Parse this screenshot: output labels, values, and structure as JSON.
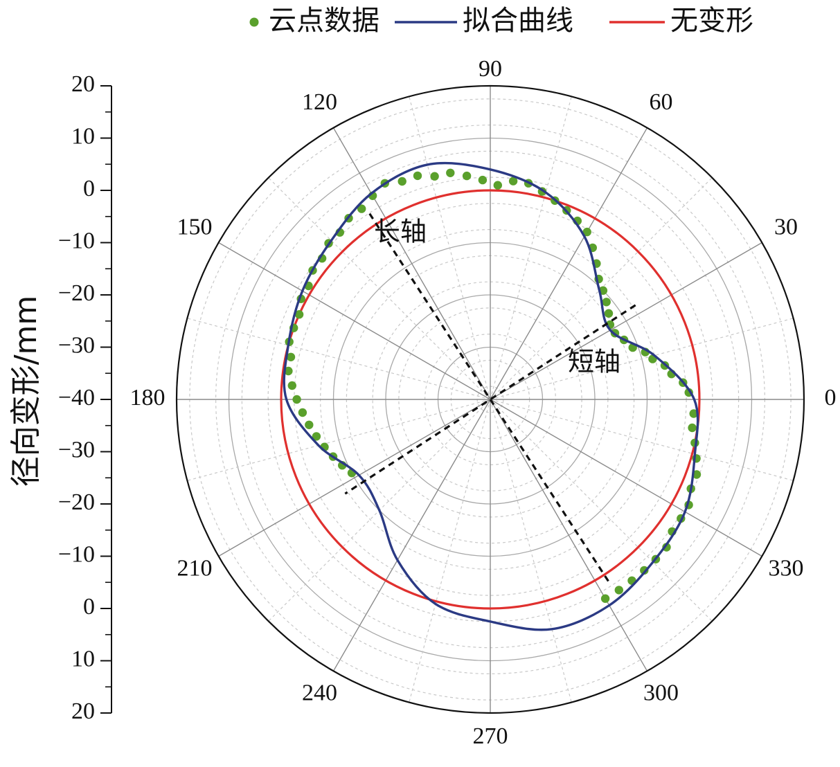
{
  "chart_data": {
    "type": "polar-scatter-line",
    "ylabel": "径向变形/mm",
    "legend": {
      "placement": "top-center",
      "entries": [
        {
          "key": "points",
          "label": "云点数据",
          "color": "#5aa02c",
          "marker": "dot"
        },
        {
          "key": "fit",
          "label": "拟合曲线",
          "color": "#2b3a84",
          "marker": "line"
        },
        {
          "key": "ref",
          "label": "无变形",
          "color": "#e0302e",
          "marker": "line"
        }
      ]
    },
    "radial_axis": {
      "range": [
        -40,
        20
      ],
      "ticks_top": [
        "20",
        "10",
        "0",
        "−10",
        "−20",
        "−30"
      ],
      "tick_center": "−40",
      "ticks_bottom": [
        "−30",
        "−20",
        "−10",
        "0",
        "10",
        "20"
      ]
    },
    "angular_ticks": [
      "0",
      "30",
      "60",
      "90",
      "120",
      "150",
      "180",
      "210",
      "240",
      "270",
      "300",
      "330"
    ],
    "annotations": [
      {
        "label": "长轴",
        "axis_angle_deg": 123
      },
      {
        "label": "短轴",
        "axis_angle_deg": 33
      }
    ],
    "reference_radius": 0,
    "fit_curve": [
      {
        "angle": 0,
        "r": -1.0
      },
      {
        "angle": 15,
        "r": -7.5
      },
      {
        "angle": 30,
        "r": -13.5
      },
      {
        "angle": 45,
        "r": -10.5
      },
      {
        "angle": 60,
        "r": -4.0
      },
      {
        "angle": 75,
        "r": 1.0
      },
      {
        "angle": 90,
        "r": 4.0
      },
      {
        "angle": 105,
        "r": 6.5
      },
      {
        "angle": 120,
        "r": 5.5
      },
      {
        "angle": 135,
        "r": 3.0
      },
      {
        "angle": 150,
        "r": 1.5
      },
      {
        "angle": 165,
        "r": 0.0
      },
      {
        "angle": 180,
        "r": -1.0
      },
      {
        "angle": 195,
        "r": -6.0
      },
      {
        "angle": 210,
        "r": -11.0
      },
      {
        "angle": 225,
        "r": -10.0
      },
      {
        "angle": 240,
        "r": -4.5
      },
      {
        "angle": 255,
        "r": 0.5
      },
      {
        "angle": 270,
        "r": 2.5
      },
      {
        "angle": 285,
        "r": 5.5
      },
      {
        "angle": 300,
        "r": 5.5
      },
      {
        "angle": 315,
        "r": 4.0
      },
      {
        "angle": 330,
        "r": 3.0
      },
      {
        "angle": 345,
        "r": 0.5
      },
      {
        "angle": 360,
        "r": -1.0
      }
    ],
    "cloud_points": [
      {
        "angle": 2,
        "r": -2
      },
      {
        "angle": 5,
        "r": -3
      },
      {
        "angle": 8,
        "r": -5
      },
      {
        "angle": 11,
        "r": -6
      },
      {
        "angle": 14,
        "r": -8
      },
      {
        "angle": 17,
        "r": -9
      },
      {
        "angle": 20,
        "r": -11
      },
      {
        "angle": 24,
        "r": -12
      },
      {
        "angle": 28,
        "r": -13
      },
      {
        "angle": 32,
        "r": -13
      },
      {
        "angle": 36,
        "r": -12
      },
      {
        "angle": 40,
        "r": -11
      },
      {
        "angle": 44,
        "r": -10
      },
      {
        "angle": 48,
        "r": -9
      },
      {
        "angle": 52,
        "r": -7
      },
      {
        "angle": 56,
        "r": -5
      },
      {
        "angle": 60,
        "r": -3
      },
      {
        "angle": 64,
        "r": -2
      },
      {
        "angle": 68,
        "r": -1
      },
      {
        "angle": 72,
        "r": 0
      },
      {
        "angle": 76,
        "r": 1
      },
      {
        "angle": 80,
        "r": 2
      },
      {
        "angle": 84,
        "r": 2
      },
      {
        "angle": 88,
        "r": 1
      },
      {
        "angle": 92,
        "r": 2
      },
      {
        "angle": 96,
        "r": 3
      },
      {
        "angle": 100,
        "r": 4
      },
      {
        "angle": 104,
        "r": 4
      },
      {
        "angle": 108,
        "r": 5
      },
      {
        "angle": 112,
        "r": 5
      },
      {
        "angle": 116,
        "r": 6
      },
      {
        "angle": 120,
        "r": 5
      },
      {
        "angle": 124,
        "r": 4
      },
      {
        "angle": 128,
        "r": 4
      },
      {
        "angle": 132,
        "r": 3
      },
      {
        "angle": 136,
        "r": 3
      },
      {
        "angle": 140,
        "r": 2
      },
      {
        "angle": 144,
        "r": 2
      },
      {
        "angle": 148,
        "r": 1
      },
      {
        "angle": 152,
        "r": 1
      },
      {
        "angle": 156,
        "r": 0
      },
      {
        "angle": 160,
        "r": 0
      },
      {
        "angle": 164,
        "r": 0
      },
      {
        "angle": 168,
        "r": -1
      },
      {
        "angle": 172,
        "r": -1
      },
      {
        "angle": 176,
        "r": -2
      },
      {
        "angle": 180,
        "r": -3
      },
      {
        "angle": 184,
        "r": -4
      },
      {
        "angle": 188,
        "r": -5
      },
      {
        "angle": 192,
        "r": -6
      },
      {
        "angle": 196,
        "r": -7
      },
      {
        "angle": 200,
        "r": -8
      },
      {
        "angle": 204,
        "r": -9
      },
      {
        "angle": 208,
        "r": -10
      },
      {
        "angle": 300,
        "r": 4
      },
      {
        "angle": 304,
        "r": 4
      },
      {
        "angle": 308,
        "r": 4
      },
      {
        "angle": 312,
        "r": 4
      },
      {
        "angle": 316,
        "r": 4
      },
      {
        "angle": 320,
        "r": 4
      },
      {
        "angle": 324,
        "r": 3
      },
      {
        "angle": 328,
        "r": 3
      },
      {
        "angle": 332,
        "r": 3
      },
      {
        "angle": 336,
        "r": 2
      },
      {
        "angle": 340,
        "r": 2
      },
      {
        "angle": 344,
        "r": 1
      },
      {
        "angle": 348,
        "r": 0
      },
      {
        "angle": 352,
        "r": -1
      },
      {
        "angle": 356,
        "r": -1
      }
    ]
  }
}
